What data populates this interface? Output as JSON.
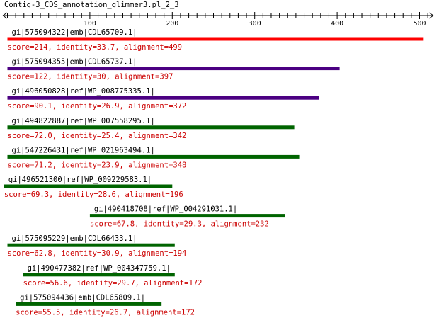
{
  "title": "Contig-3_CDS_annotation_glimmer3.pl_2_3",
  "axis": {
    "min": 0,
    "max": 510,
    "major_ticks": [
      100,
      200,
      300,
      400,
      500
    ],
    "minor_step": 10
  },
  "colors": {
    "text": "#000000",
    "stats": "#cc0000",
    "axis": "#000000",
    "red_bar": "#ff0000",
    "purple_bar": "#4b0082",
    "green_bar": "#006400"
  },
  "hits": [
    {
      "id": "gi|575094322|emb|CDL65709.1|",
      "stats": "score=214, identity=33.7, alignment=499",
      "start": 0,
      "end": 505,
      "color": "red_bar"
    },
    {
      "id": "gi|575094355|emb|CDL65737.1|",
      "stats": "score=122, identity=30, alignment=397",
      "start": 0,
      "end": 403,
      "color": "purple_bar"
    },
    {
      "id": "gi|496050828|ref|WP_008775335.1|",
      "stats": "score=90.1, identity=26.9, alignment=372",
      "start": 0,
      "end": 378,
      "color": "purple_bar"
    },
    {
      "id": "gi|494822887|ref|WP_007558295.1|",
      "stats": "score=72.0, identity=25.4, alignment=342",
      "start": 0,
      "end": 348,
      "color": "green_bar"
    },
    {
      "id": "gi|547226431|ref|WP_021963494.1|",
      "stats": "score=71.2, identity=23.9, alignment=348",
      "start": 0,
      "end": 354,
      "color": "green_bar"
    },
    {
      "id": "gi|496521300|ref|WP_009229583.1|",
      "stats": "score=69.3, identity=28.6, alignment=196",
      "start": -4,
      "end": 200,
      "color": "green_bar"
    },
    {
      "id": "gi|490418708|ref|WP_004291031.1|",
      "stats": "score=67.8, identity=29.3, alignment=232",
      "start": 100,
      "end": 337,
      "color": "green_bar"
    },
    {
      "id": "gi|575095229|emb|CDL66433.1|",
      "stats": "score=62.8, identity=30.9, alignment=194",
      "start": 0,
      "end": 203,
      "color": "green_bar"
    },
    {
      "id": "gi|490477382|ref|WP_004347759.1|",
      "stats": "score=56.6, identity=29.7, alignment=172",
      "start": 19,
      "end": 203,
      "color": "green_bar"
    },
    {
      "id": "gi|575094436|emb|CDL65809.1|",
      "stats": "score=55.5, identity=26.7, alignment=172",
      "start": 10,
      "end": 187,
      "color": "green_bar"
    }
  ]
}
